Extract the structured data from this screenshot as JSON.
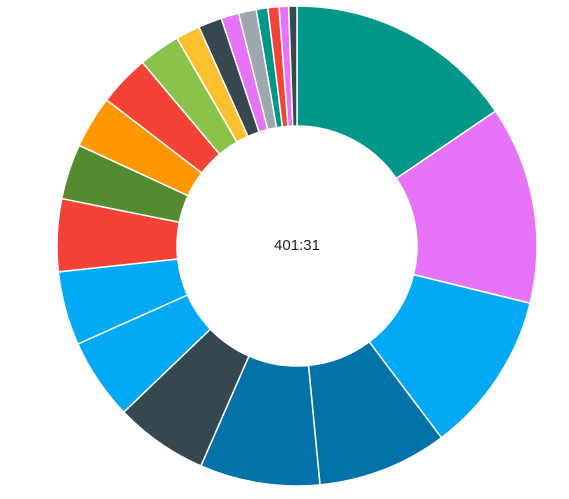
{
  "chart_data": {
    "type": "donut",
    "center_label": "401:31",
    "values": [
      55.8,
      48,
      39.2,
      31.5,
      29.1,
      22.6,
      19.7,
      17.9,
      17.6,
      13.4,
      12.7,
      12.4,
      10.1,
      5.9,
      5.7,
      4.3,
      4.3,
      2.8,
      2.7,
      2.3,
      2
    ],
    "colors": [
      "#009688",
      "#e673f8",
      "#03a9f4",
      "#0272a8",
      "#0272a8",
      "#37474f",
      "#03a9f4",
      "#03a9f4",
      "#f44336",
      "#558b2f",
      "#ff9800",
      "#f44336",
      "#8bc34a",
      "#fbc02d",
      "#37474f",
      "#e673f8",
      "#9ea7ad",
      "#009688",
      "#f44336",
      "#e673f8",
      "#37474f"
    ]
  }
}
